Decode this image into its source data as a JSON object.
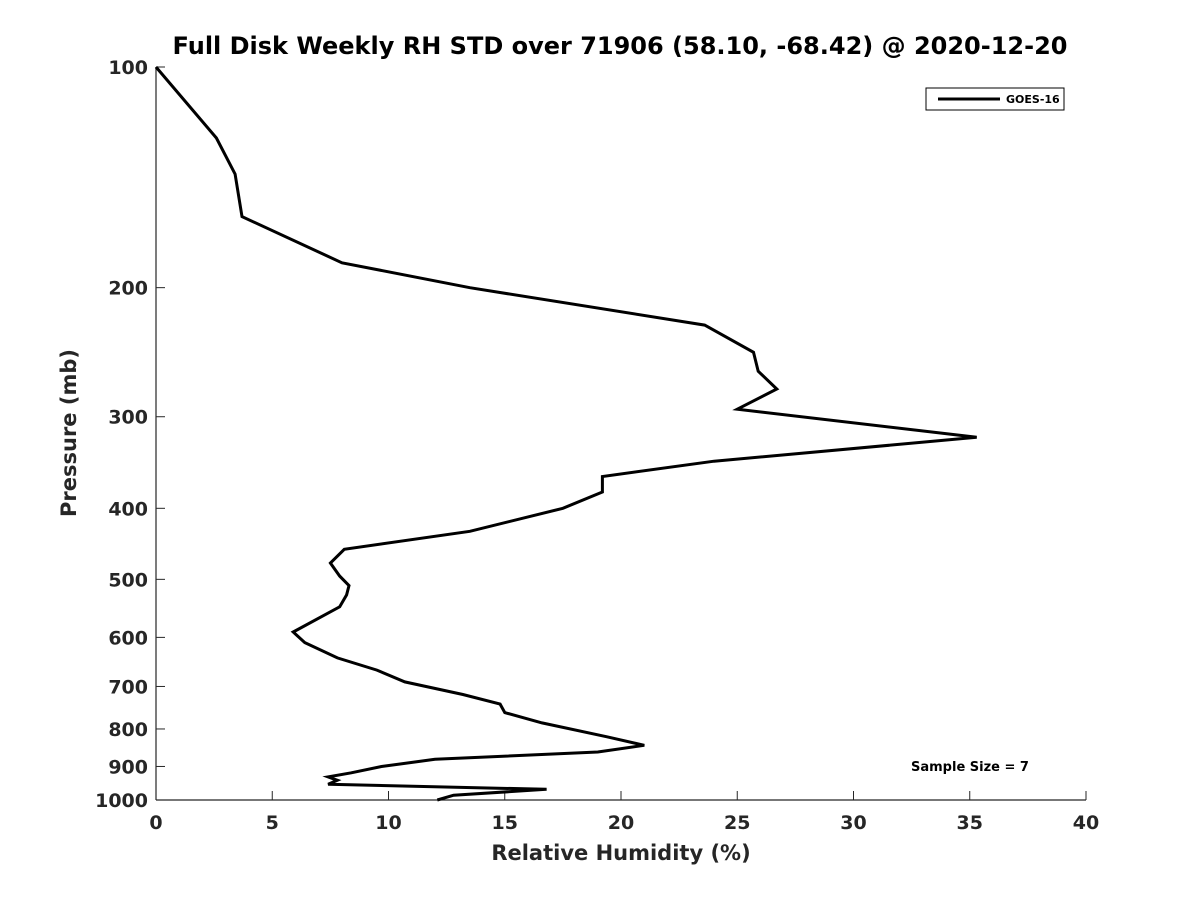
{
  "chart_data": {
    "type": "line",
    "title": "Full Disk Weekly RH STD over 71906 (58.10, -68.42) @ 2020-12-20",
    "xlabel": "Relative Humidity (%)",
    "ylabel": "Pressure (mb)",
    "xlim": [
      0,
      40
    ],
    "ylim": [
      100,
      1000
    ],
    "y_scale": "log",
    "y_reversed": true,
    "x_ticks": [
      "0",
      "5",
      "10",
      "15",
      "20",
      "25",
      "30",
      "35",
      "40"
    ],
    "y_ticks": [
      "100",
      "200",
      "300",
      "400",
      "500",
      "600",
      "700",
      "800",
      "900",
      "1000"
    ],
    "grid": false,
    "legend_position": "top-right",
    "series": [
      {
        "name": "GOES-16",
        "color": "#000000",
        "points": [
          [
            0.0,
            100
          ],
          [
            2.6,
            125
          ],
          [
            3.4,
            140
          ],
          [
            3.7,
            160
          ],
          [
            8.0,
            185
          ],
          [
            13.5,
            200
          ],
          [
            23.6,
            225
          ],
          [
            25.7,
            245
          ],
          [
            25.9,
            260
          ],
          [
            26.7,
            275
          ],
          [
            25.0,
            293
          ],
          [
            35.3,
            320
          ],
          [
            24.0,
            345
          ],
          [
            19.2,
            362
          ],
          [
            19.2,
            380
          ],
          [
            17.5,
            400
          ],
          [
            13.5,
            430
          ],
          [
            8.1,
            455
          ],
          [
            7.5,
            475
          ],
          [
            7.9,
            495
          ],
          [
            8.3,
            510
          ],
          [
            8.2,
            525
          ],
          [
            7.9,
            545
          ],
          [
            5.9,
            590
          ],
          [
            6.4,
            610
          ],
          [
            7.8,
            640
          ],
          [
            9.5,
            665
          ],
          [
            10.7,
            690
          ],
          [
            13.2,
            718
          ],
          [
            14.8,
            740
          ],
          [
            15.0,
            760
          ],
          [
            16.6,
            785
          ],
          [
            19.4,
            820
          ],
          [
            21.0,
            842
          ],
          [
            19.0,
            860
          ],
          [
            12.0,
            880
          ],
          [
            9.7,
            900
          ],
          [
            8.4,
            918
          ],
          [
            7.4,
            930
          ],
          [
            7.8,
            940
          ],
          [
            7.4,
            952
          ],
          [
            16.8,
            967
          ],
          [
            12.8,
            985
          ],
          [
            12.1,
            1000
          ]
        ]
      }
    ],
    "annotations": [
      "Sample Size = 7"
    ]
  }
}
